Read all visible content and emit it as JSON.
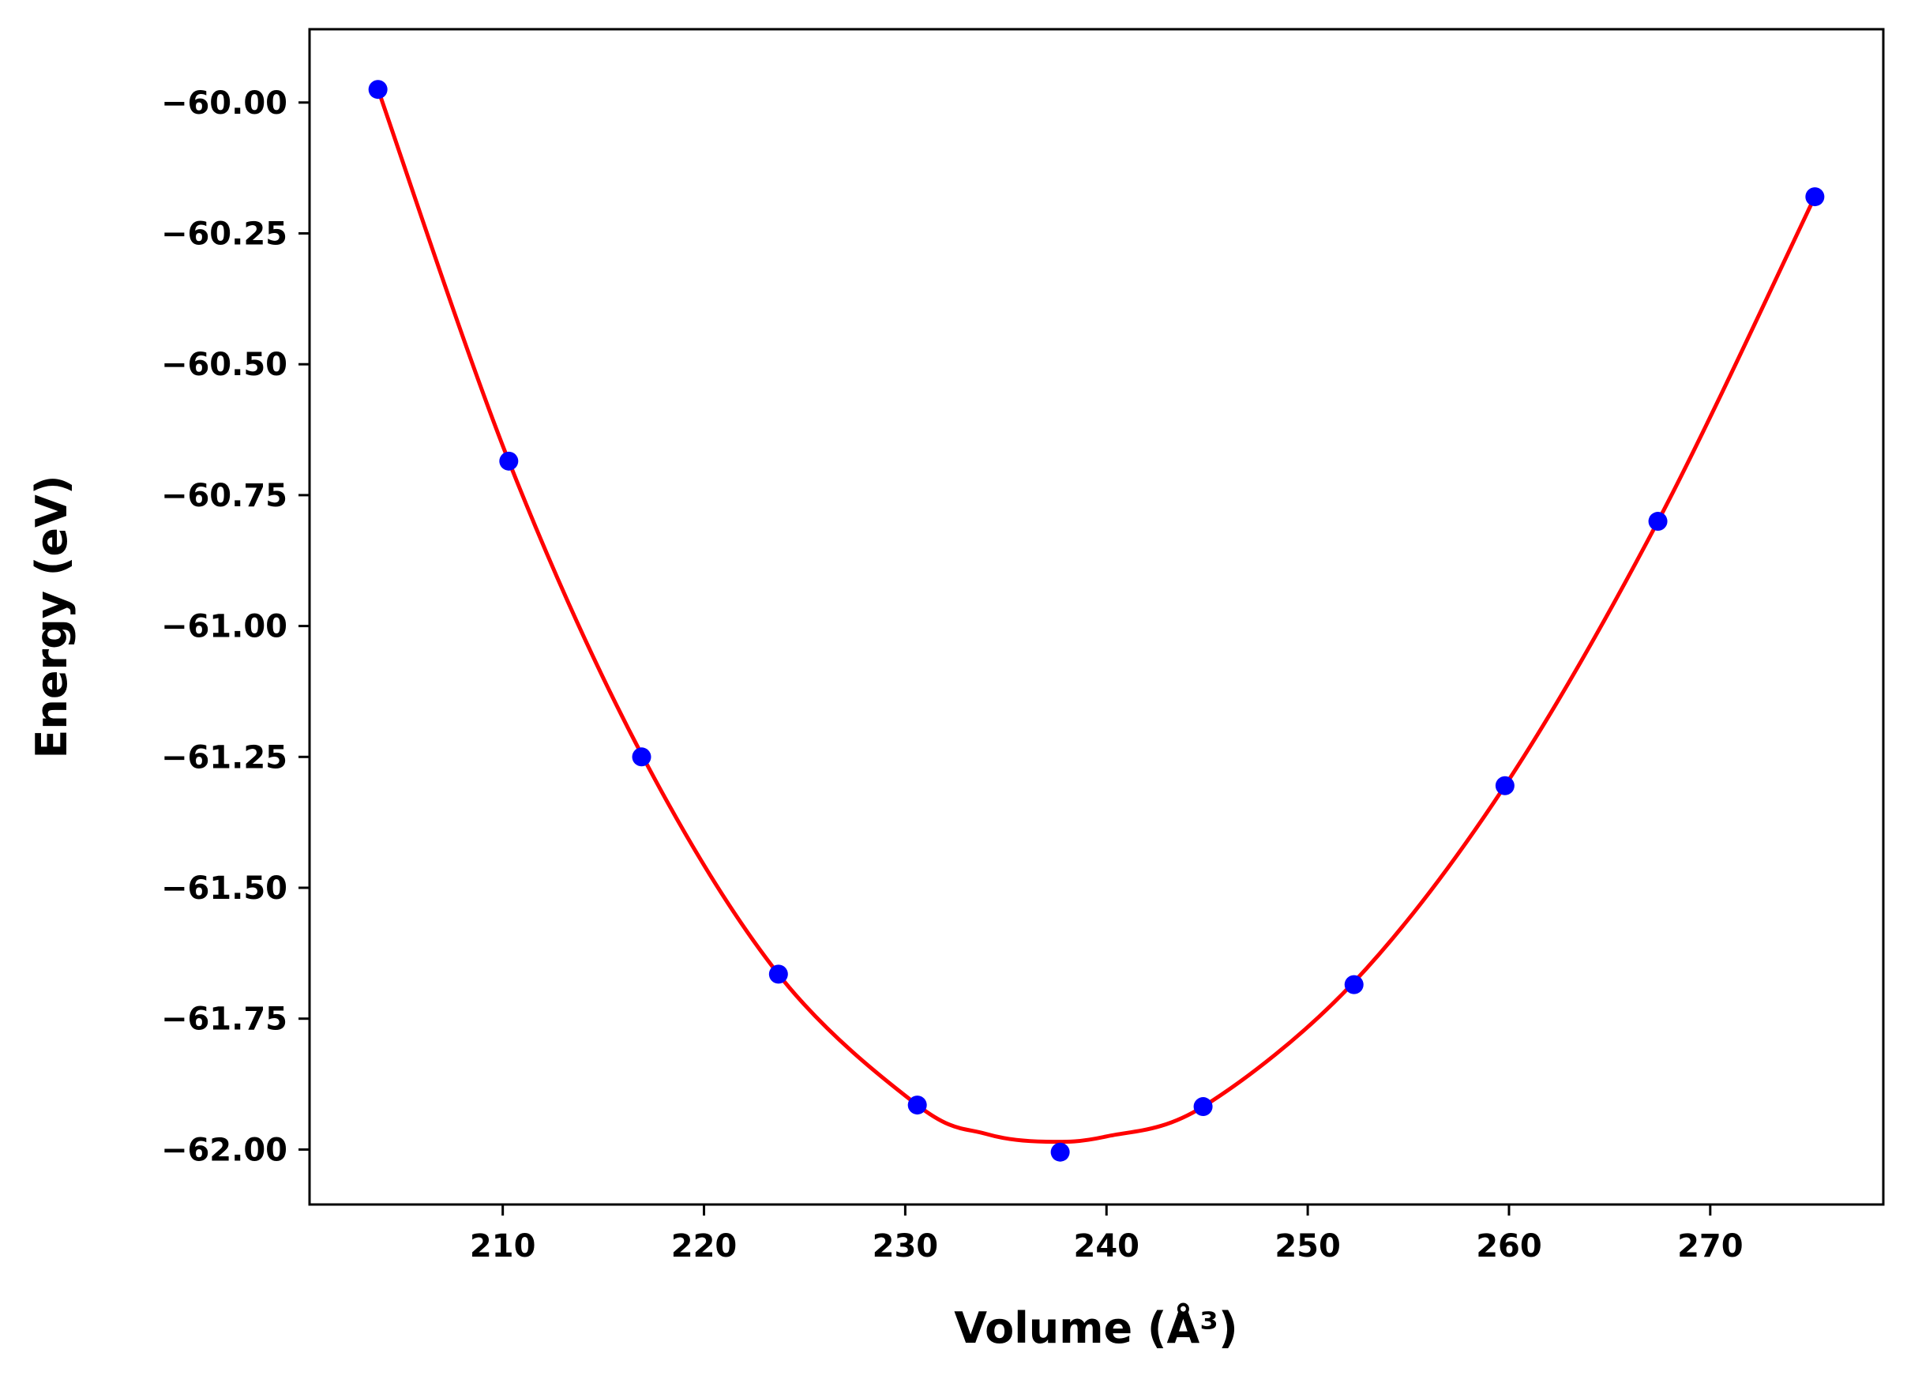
{
  "chart_data": {
    "type": "scatter",
    "title": "",
    "xlabel": "Volume (Å³)",
    "ylabel": "Energy (eV)",
    "xlim": [
      200.4,
      278.6
    ],
    "ylim": [
      -62.105,
      -59.86
    ],
    "xticks": [
      210,
      220,
      230,
      240,
      250,
      260,
      270
    ],
    "xtick_labels": [
      "210",
      "220",
      "230",
      "240",
      "250",
      "260",
      "270"
    ],
    "yticks": [
      -60.0,
      -60.25,
      -60.5,
      -60.75,
      -61.0,
      -61.25,
      -61.5,
      -61.75,
      -62.0
    ],
    "ytick_labels": [
      "−60.00",
      "−60.25",
      "−60.50",
      "−60.75",
      "−61.00",
      "−61.25",
      "−61.50",
      "−61.75",
      "−62.00"
    ],
    "grid": false,
    "series": [
      {
        "kind": "points",
        "color": "#0000ff",
        "x": [
          203.8,
          210.3,
          216.9,
          223.7,
          230.6,
          237.7,
          244.8,
          252.3,
          259.8,
          267.4,
          275.2
        ],
        "y": [
          -59.975,
          -60.685,
          -61.25,
          -61.665,
          -61.915,
          -62.005,
          -61.918,
          -61.685,
          -61.305,
          -60.8,
          -60.18
        ]
      },
      {
        "kind": "fit-curve",
        "color": "#ff0000",
        "x": [
          203.8,
          210.3,
          216.9,
          223.7,
          230.6,
          234.0,
          237.0,
          240.0,
          244.8,
          252.3,
          259.8,
          267.4,
          275.2
        ],
        "y": [
          -59.975,
          -60.685,
          -61.245,
          -61.665,
          -61.915,
          -61.97,
          -61.985,
          -61.975,
          -61.918,
          -61.68,
          -61.305,
          -60.8,
          -60.18
        ]
      }
    ]
  }
}
